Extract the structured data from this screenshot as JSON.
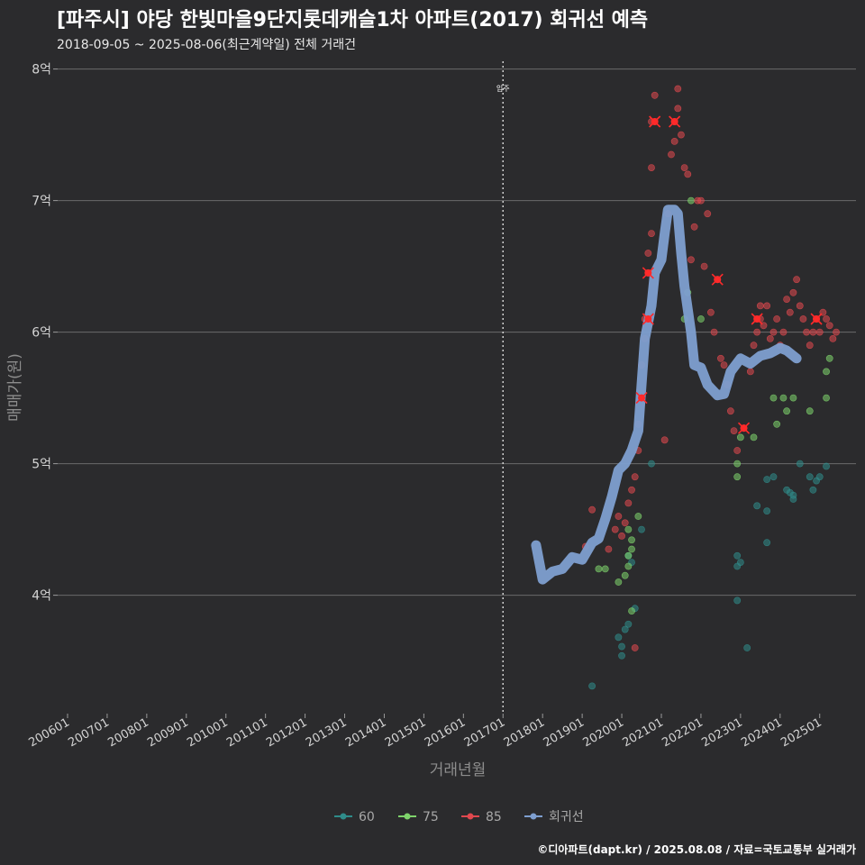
{
  "title": "[파주시] 야당 한빛마을9단지롯데캐슬1차 아파트(2017) 회귀선 예측",
  "subtitle": "2018-09-05 ~ 2025-08-06(최근계약일) 전체 거래건",
  "caption": "©디아파트(dapt.kr) / 2025.08.08 / 자료=국토교통부 실거래가",
  "colors": {
    "background": "#2b2b2d",
    "grid": "#6b6b6b",
    "s60": "#2f8c8a",
    "s75": "#7ed36b",
    "s85": "#e0484e",
    "regression": "#7e9fd0"
  },
  "chart_data": {
    "type": "scatter",
    "xlabel": "거래년월",
    "ylabel": "매매가(원)",
    "x_ticks": [
      "200601",
      "200701",
      "200801",
      "200901",
      "201001",
      "201101",
      "201201",
      "201301",
      "201401",
      "201501",
      "201601",
      "201701",
      "201801",
      "201901",
      "202001",
      "202101",
      "202201",
      "202301",
      "202401",
      "202501"
    ],
    "y_ticks": [
      "4억",
      "5억",
      "6억",
      "7억",
      "8억"
    ],
    "y_tick_values": [
      4,
      5,
      6,
      7,
      8
    ],
    "ylim": [
      3.1,
      8.1
    ],
    "xlim": [
      "2005-10",
      "2025-12"
    ],
    "vline": {
      "x": "2017-01",
      "label": "입주"
    },
    "legend": {
      "placement": "bottom",
      "items": [
        "60",
        "75",
        "85",
        "회귀선"
      ]
    },
    "series": [
      {
        "name": "60",
        "points": [
          [
            "2019-04",
            3.31
          ],
          [
            "2019-12",
            3.68
          ],
          [
            "2020-01",
            3.61
          ],
          [
            "2020-01",
            3.54
          ],
          [
            "2020-02",
            3.74
          ],
          [
            "2020-03",
            3.78
          ],
          [
            "2020-05",
            3.9
          ],
          [
            "2020-04",
            4.25
          ],
          [
            "2020-03",
            4.3
          ],
          [
            "2020-07",
            4.5
          ],
          [
            "2020-10",
            5.0
          ],
          [
            "2022-12",
            4.3
          ],
          [
            "2022-12",
            4.22
          ],
          [
            "2023-01",
            4.25
          ],
          [
            "2022-12",
            3.96
          ],
          [
            "2023-03",
            3.6
          ],
          [
            "2023-06",
            4.68
          ],
          [
            "2023-09",
            4.64
          ],
          [
            "2023-09",
            4.88
          ],
          [
            "2023-11",
            4.9
          ],
          [
            "2023-09",
            4.4
          ],
          [
            "2024-03",
            4.8
          ],
          [
            "2024-04",
            4.78
          ],
          [
            "2024-05",
            4.73
          ],
          [
            "2024-05",
            4.76
          ],
          [
            "2024-07",
            5.0
          ],
          [
            "2024-10",
            4.9
          ],
          [
            "2024-11",
            4.8
          ],
          [
            "2024-12",
            4.87
          ],
          [
            "2025-01",
            4.9
          ],
          [
            "2025-03",
            4.98
          ]
        ]
      },
      {
        "name": "75",
        "points": [
          [
            "2019-06",
            4.2
          ],
          [
            "2019-08",
            4.2
          ],
          [
            "2019-12",
            4.1
          ],
          [
            "2020-02",
            4.15
          ],
          [
            "2020-03",
            4.22
          ],
          [
            "2020-03",
            4.3
          ],
          [
            "2020-04",
            4.35
          ],
          [
            "2020-04",
            4.42
          ],
          [
            "2020-03",
            4.5
          ],
          [
            "2020-04",
            3.88
          ],
          [
            "2020-06",
            4.6
          ],
          [
            "2021-08",
            6.1
          ],
          [
            "2021-09",
            6.3
          ],
          [
            "2021-10",
            7.0
          ],
          [
            "2022-01",
            6.1
          ],
          [
            "2022-12",
            4.9
          ],
          [
            "2022-12",
            5.0
          ],
          [
            "2023-01",
            5.2
          ],
          [
            "2023-05",
            5.2
          ],
          [
            "2023-11",
            5.5
          ],
          [
            "2023-12",
            5.3
          ],
          [
            "2024-02",
            5.5
          ],
          [
            "2024-03",
            5.4
          ],
          [
            "2024-05",
            5.5
          ],
          [
            "2024-10",
            5.4
          ],
          [
            "2025-03",
            5.5
          ],
          [
            "2025-03",
            5.7
          ],
          [
            "2025-04",
            5.8
          ]
        ]
      },
      {
        "name": "85",
        "points": [
          [
            "2019-02",
            4.37
          ],
          [
            "2019-04",
            4.65
          ],
          [
            "2019-09",
            4.35
          ],
          [
            "2019-11",
            4.5
          ],
          [
            "2019-12",
            4.6
          ],
          [
            "2020-01",
            4.45
          ],
          [
            "2020-02",
            4.55
          ],
          [
            "2020-03",
            4.7
          ],
          [
            "2020-04",
            4.8
          ],
          [
            "2020-05",
            4.9
          ],
          [
            "2020-05",
            3.6
          ],
          [
            "2020-06",
            5.1
          ],
          [
            "2020-06",
            5.3
          ],
          [
            "2020-07",
            5.5
          ],
          [
            "2020-07",
            5.75
          ],
          [
            "2020-08",
            5.95
          ],
          [
            "2020-08",
            6.1
          ],
          [
            "2020-09",
            6.45
          ],
          [
            "2020-09",
            6.6
          ],
          [
            "2020-10",
            6.75
          ],
          [
            "2020-10",
            7.25
          ],
          [
            "2020-10",
            7.6
          ],
          [
            "2020-11",
            7.8
          ],
          [
            "2021-02",
            5.18
          ],
          [
            "2021-03",
            6.9
          ],
          [
            "2021-04",
            7.35
          ],
          [
            "2021-05",
            7.45
          ],
          [
            "2021-05",
            7.6
          ],
          [
            "2021-06",
            7.85
          ],
          [
            "2021-06",
            7.7
          ],
          [
            "2021-07",
            7.5
          ],
          [
            "2021-08",
            7.25
          ],
          [
            "2021-09",
            7.2
          ],
          [
            "2021-10",
            6.55
          ],
          [
            "2021-11",
            6.8
          ],
          [
            "2021-12",
            7.0
          ],
          [
            "2022-01",
            7.0
          ],
          [
            "2022-02",
            6.5
          ],
          [
            "2022-03",
            6.9
          ],
          [
            "2022-04",
            6.15
          ],
          [
            "2022-05",
            6.0
          ],
          [
            "2022-06",
            6.4
          ],
          [
            "2022-07",
            5.8
          ],
          [
            "2022-08",
            5.75
          ],
          [
            "2022-09",
            5.6
          ],
          [
            "2022-10",
            5.4
          ],
          [
            "2022-11",
            5.25
          ],
          [
            "2022-12",
            5.1
          ],
          [
            "2023-02",
            5.27
          ],
          [
            "2023-04",
            5.7
          ],
          [
            "2023-05",
            5.9
          ],
          [
            "2023-06",
            6.0
          ],
          [
            "2023-07",
            6.2
          ],
          [
            "2023-07",
            6.1
          ],
          [
            "2023-08",
            6.05
          ],
          [
            "2023-09",
            6.2
          ],
          [
            "2023-10",
            5.95
          ],
          [
            "2023-11",
            6.0
          ],
          [
            "2023-12",
            6.1
          ],
          [
            "2024-01",
            5.9
          ],
          [
            "2024-02",
            6.0
          ],
          [
            "2024-03",
            6.25
          ],
          [
            "2024-04",
            6.15
          ],
          [
            "2024-05",
            6.3
          ],
          [
            "2024-06",
            6.4
          ],
          [
            "2024-07",
            6.2
          ],
          [
            "2024-08",
            6.1
          ],
          [
            "2024-09",
            6.0
          ],
          [
            "2024-10",
            5.9
          ],
          [
            "2024-11",
            6.0
          ],
          [
            "2024-12",
            6.1
          ],
          [
            "2025-01",
            6.0
          ],
          [
            "2025-02",
            6.15
          ],
          [
            "2025-03",
            6.1
          ],
          [
            "2025-04",
            6.05
          ],
          [
            "2025-05",
            5.95
          ],
          [
            "2025-06",
            6.0
          ]
        ]
      },
      {
        "name": "회귀선",
        "points": [
          [
            "2017-11",
            4.38
          ],
          [
            "2018-01",
            4.12
          ],
          [
            "2018-04",
            4.18
          ],
          [
            "2018-07",
            4.2
          ],
          [
            "2018-10",
            4.29
          ],
          [
            "2019-01",
            4.27
          ],
          [
            "2019-04",
            4.4
          ],
          [
            "2019-06",
            4.43
          ],
          [
            "2019-08",
            4.58
          ],
          [
            "2019-10",
            4.75
          ],
          [
            "2019-12",
            4.95
          ],
          [
            "2020-02",
            5.0
          ],
          [
            "2020-04",
            5.1
          ],
          [
            "2020-06",
            5.25
          ],
          [
            "2020-07",
            5.6
          ],
          [
            "2020-08",
            5.95
          ],
          [
            "2020-10",
            6.2
          ],
          [
            "2020-11",
            6.45
          ],
          [
            "2021-01",
            6.55
          ],
          [
            "2021-02",
            6.75
          ],
          [
            "2021-03",
            6.93
          ],
          [
            "2021-05",
            6.93
          ],
          [
            "2021-06",
            6.9
          ],
          [
            "2021-07",
            6.6
          ],
          [
            "2021-08",
            6.35
          ],
          [
            "2021-10",
            6.0
          ],
          [
            "2021-11",
            5.75
          ],
          [
            "2022-01",
            5.73
          ],
          [
            "2022-03",
            5.6
          ],
          [
            "2022-06",
            5.52
          ],
          [
            "2022-08",
            5.53
          ],
          [
            "2022-10",
            5.7
          ],
          [
            "2023-01",
            5.8
          ],
          [
            "2023-04",
            5.76
          ],
          [
            "2023-07",
            5.82
          ],
          [
            "2023-10",
            5.84
          ],
          [
            "2024-01",
            5.88
          ],
          [
            "2024-03",
            5.86
          ],
          [
            "2024-06",
            5.8
          ]
        ]
      }
    ],
    "highlights": [
      [
        "2020-07",
        5.5
      ],
      [
        "2020-09",
        6.1
      ],
      [
        "2020-09",
        6.45
      ],
      [
        "2020-11",
        7.6
      ],
      [
        "2021-05",
        7.6
      ],
      [
        "2022-06",
        6.4
      ],
      [
        "2023-02",
        5.27
      ],
      [
        "2023-06",
        6.1
      ],
      [
        "2024-12",
        6.1
      ]
    ]
  }
}
